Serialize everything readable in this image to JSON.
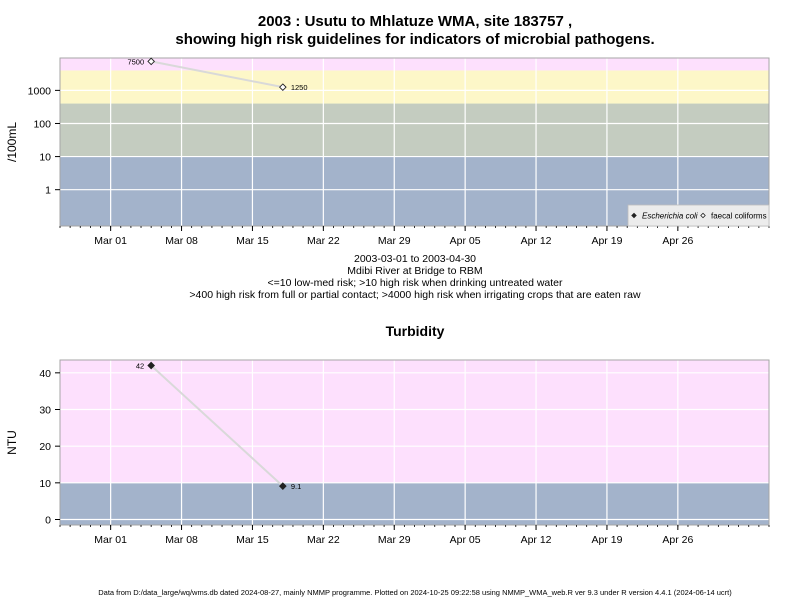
{
  "header": {
    "title_line1": "2003 : Usutu to Mhlatuze WMA, site 183757 ,",
    "title_line2": "showing high risk guidelines for indicators of microbial pathogens."
  },
  "middle": {
    "date_range": "2003-03-01 to 2003-04-30",
    "site_name": "Mdibi River at Bridge to RBM",
    "guideline_1": "<=10 low-med risk; >10 high risk when drinking untreated water",
    "guideline_2": ">400 high risk from full or partial contact; >4000 high risk when irrigating crops that are eaten raw"
  },
  "footer": {
    "text": "Data from D:/data_large/wq/wms.db dated 2024-08-27, mainly NMMP programme. Plotted on 2024-10-25 09:22:58 using NMMP_WMA_web.R ver 9.3 under R version 4.4.1 (2024-06-14 ucrt)"
  },
  "colors": {
    "band_blue": "#a3b3cb",
    "band_grey": "#c4ccc0",
    "band_yellow": "#fdf7c8",
    "band_pink": "#fde0fd",
    "grid": "#ffffff",
    "connector": "#d9d9d9"
  },
  "chart_data": [
    {
      "type": "scatter",
      "title": "",
      "xlabel": "",
      "ylabel": "/100mL",
      "y_scale": "log",
      "ylim": [
        0.08,
        9500
      ],
      "xlim": [
        "2003-02-24",
        "2003-05-05"
      ],
      "x_ticks": [
        "2003-03-01",
        "2003-03-08",
        "2003-03-15",
        "2003-03-22",
        "2003-03-29",
        "2003-04-05",
        "2003-04-12",
        "2003-04-19",
        "2003-04-26"
      ],
      "x_tick_labels": [
        "Mar 01",
        "Mar 08",
        "Mar 15",
        "Mar 22",
        "Mar 29",
        "Apr 05",
        "Apr 12",
        "Apr 19",
        "Apr 26"
      ],
      "y_ticks": [
        1,
        10,
        100,
        1000
      ],
      "y_tick_labels": [
        "1",
        "10",
        "100",
        "1000"
      ],
      "bands": [
        {
          "from": 0.08,
          "to": 10,
          "color": "#a3b3cb"
        },
        {
          "from": 10,
          "to": 400,
          "color": "#c4ccc0"
        },
        {
          "from": 400,
          "to": 4000,
          "color": "#fdf7c8"
        },
        {
          "from": 4000,
          "to": 9500,
          "color": "#fde0fd"
        }
      ],
      "series": [
        {
          "name": "faecal coliforms",
          "marker": "open-diamond",
          "x": [
            "2003-03-05",
            "2003-03-18"
          ],
          "y": [
            7500,
            1250
          ],
          "labels": [
            "7500",
            "1250"
          ]
        },
        {
          "name": "Escherichia coli",
          "marker": "filled-diamond",
          "x": [],
          "y": [],
          "labels": []
        }
      ],
      "legend": {
        "position": "bottom-right",
        "entries": [
          {
            "label": "Escherichia coli",
            "italic": true,
            "marker": "filled-diamond"
          },
          {
            "label": "faecal coliforms",
            "italic": false,
            "marker": "open-diamond"
          }
        ]
      },
      "grid": true
    },
    {
      "type": "scatter",
      "title": "Turbidity",
      "xlabel": "",
      "ylabel": "NTU",
      "y_scale": "linear",
      "ylim": [
        -1.5,
        43.5
      ],
      "xlim": [
        "2003-02-24",
        "2003-05-05"
      ],
      "x_ticks": [
        "2003-03-01",
        "2003-03-08",
        "2003-03-15",
        "2003-03-22",
        "2003-03-29",
        "2003-04-05",
        "2003-04-12",
        "2003-04-19",
        "2003-04-26"
      ],
      "x_tick_labels": [
        "Mar 01",
        "Mar 08",
        "Mar 15",
        "Mar 22",
        "Mar 29",
        "Apr 05",
        "Apr 12",
        "Apr 19",
        "Apr 26"
      ],
      "y_ticks": [
        0,
        10,
        20,
        30,
        40
      ],
      "y_tick_labels": [
        "0",
        "10",
        "20",
        "30",
        "40"
      ],
      "bands": [
        {
          "from": -1.5,
          "to": 10,
          "color": "#a3b3cb"
        },
        {
          "from": 10,
          "to": 43.5,
          "color": "#fde0fd"
        }
      ],
      "series": [
        {
          "name": "",
          "marker": "filled-diamond",
          "x": [
            "2003-03-05",
            "2003-03-18"
          ],
          "y": [
            42,
            9.1
          ],
          "labels": [
            "42",
            "9.1"
          ]
        }
      ],
      "grid": true
    }
  ]
}
